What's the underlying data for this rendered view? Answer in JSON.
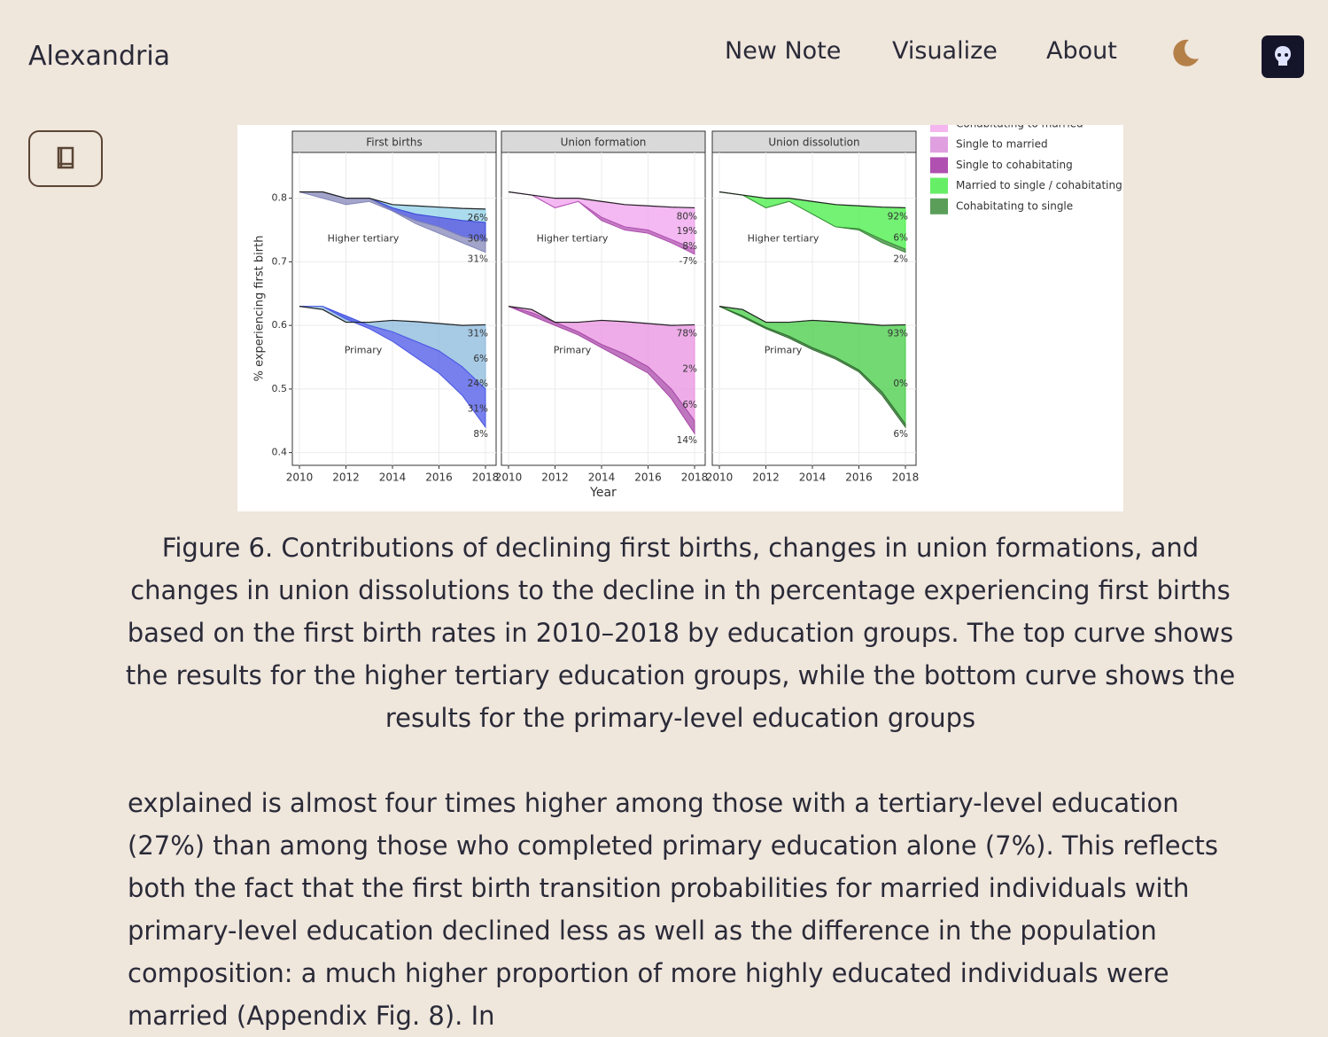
{
  "header": {
    "brand": "Alexandria",
    "nav": [
      "New Note",
      "Visualize",
      "About"
    ]
  },
  "chart_data": {
    "type": "facet-band",
    "ylabel": "% experiencing first birth",
    "xlabel": "Year",
    "x": [
      2010,
      2011,
      2012,
      2013,
      2014,
      2015,
      2016,
      2017,
      2018
    ],
    "xlim": [
      2010,
      2018
    ],
    "xticks": [
      2010,
      2012,
      2014,
      2016,
      2018
    ],
    "ylim": [
      0.38,
      0.872
    ],
    "yticks": [
      0.4,
      0.5,
      0.6,
      0.7,
      0.8
    ],
    "grid": true,
    "panels": [
      {
        "title": "First births",
        "groups": [
          {
            "label": "Higher tertiary",
            "baseline": [
              0.81,
              0.81,
              0.8,
              0.8,
              0.79,
              0.788,
              0.786,
              0.784,
              0.783
            ],
            "bands": [
              {
                "color": "#8fd0e8",
                "values": [
                  0.81,
                  0.81,
                  0.8,
                  0.8,
                  0.785,
                  0.775,
                  0.77,
                  0.765,
                  0.762
                ]
              },
              {
                "color": "#3a45d8",
                "values": [
                  0.81,
                  0.81,
                  0.8,
                  0.8,
                  0.78,
                  0.765,
                  0.755,
                  0.74,
                  0.732
                ]
              },
              {
                "color": "#8486b8",
                "values": [
                  0.81,
                  0.8,
                  0.79,
                  0.795,
                  0.78,
                  0.76,
                  0.745,
                  0.73,
                  0.715
                ]
              }
            ],
            "end_labels": [
              "26%",
              "30%",
              "31%"
            ]
          },
          {
            "label": "Primary",
            "baseline": [
              0.63,
              0.625,
              0.605,
              0.605,
              0.608,
              0.606,
              0.603,
              0.6,
              0.601
            ],
            "bands": [
              {
                "color": "#8ab8dc",
                "values": [
                  0.63,
                  0.63,
                  0.615,
                  0.6,
                  0.59,
                  0.575,
                  0.56,
                  0.535,
                  0.5
                ]
              },
              {
                "color": "#4a55e6",
                "values": [
                  0.63,
                  0.63,
                  0.61,
                  0.595,
                  0.575,
                  0.55,
                  0.525,
                  0.49,
                  0.44
                ]
              }
            ],
            "end_labels": [
              "31%",
              "6%",
              "24%",
              "31%",
              "8%"
            ]
          }
        ]
      },
      {
        "title": "Union formation",
        "groups": [
          {
            "label": "Higher tertiary",
            "baseline": [
              0.81,
              0.805,
              0.8,
              0.8,
              0.795,
              0.79,
              0.788,
              0.786,
              0.785
            ],
            "bands": [
              {
                "color": "#f0a0ee",
                "values": [
                  0.81,
                  0.805,
                  0.785,
                  0.795,
                  0.77,
                  0.755,
                  0.75,
                  0.735,
                  0.72
                ]
              },
              {
                "color": "#b050b0",
                "values": [
                  0.81,
                  0.805,
                  0.785,
                  0.795,
                  0.765,
                  0.75,
                  0.745,
                  0.73,
                  0.712
                ]
              }
            ],
            "end_labels": [
              "80%",
              "19%",
              "8%",
              "-7%"
            ]
          },
          {
            "label": "Primary",
            "baseline": [
              0.63,
              0.625,
              0.605,
              0.605,
              0.608,
              0.606,
              0.603,
              0.6,
              0.601
            ],
            "bands": [
              {
                "color": "#e890e0",
                "values": [
                  0.63,
                  0.62,
                  0.605,
                  0.59,
                  0.57,
                  0.555,
                  0.535,
                  0.5,
                  0.45
                ]
              },
              {
                "color": "#a848a8",
                "values": [
                  0.63,
                  0.615,
                  0.6,
                  0.585,
                  0.565,
                  0.545,
                  0.525,
                  0.485,
                  0.43
                ]
              }
            ],
            "end_labels": [
              "78%",
              "2%",
              "6%",
              "14%"
            ]
          }
        ]
      },
      {
        "title": "Union dissolution",
        "groups": [
          {
            "label": "Higher tertiary",
            "baseline": [
              0.81,
              0.805,
              0.8,
              0.8,
              0.795,
              0.79,
              0.788,
              0.786,
              0.785
            ],
            "bands": [
              {
                "color": "#44ee44",
                "values": [
                  0.81,
                  0.805,
                  0.785,
                  0.795,
                  0.775,
                  0.755,
                  0.752,
                  0.735,
                  0.72
                ]
              },
              {
                "color": "#3a8a3a",
                "values": [
                  0.81,
                  0.805,
                  0.785,
                  0.795,
                  0.775,
                  0.755,
                  0.75,
                  0.73,
                  0.715
                ]
              }
            ],
            "end_labels": [
              "92%",
              "6%",
              "2%"
            ]
          },
          {
            "label": "Primary",
            "baseline": [
              0.63,
              0.625,
              0.605,
              0.605,
              0.608,
              0.606,
              0.603,
              0.6,
              0.601
            ],
            "bands": [
              {
                "color": "#44cc44",
                "values": [
                  0.63,
                  0.615,
                  0.597,
                  0.583,
                  0.565,
                  0.55,
                  0.53,
                  0.495,
                  0.445
                ]
              },
              {
                "color": "#2f6e2f",
                "values": [
                  0.63,
                  0.613,
                  0.595,
                  0.58,
                  0.562,
                  0.547,
                  0.527,
                  0.49,
                  0.44
                ]
              }
            ],
            "end_labels": [
              "93%",
              "0%",
              "6%"
            ]
          }
        ]
      }
    ],
    "legend": [
      {
        "name": "Cohabitating to married",
        "color": "#f5b5ee"
      },
      {
        "name": "Single to married",
        "color": "#e0a0e0"
      },
      {
        "name": "Single to cohabitating",
        "color": "#b050b0"
      },
      {
        "name": "Married to single / cohabitating",
        "color": "#66ee66"
      },
      {
        "name": "Cohabitating to single",
        "color": "#5a9e5a"
      }
    ]
  },
  "caption": "Figure 6. Contributions of declining first births, changes in union formations, and changes in union dissolutions to the decline in th percentage experiencing first births based on the first birth rates in 2010–2018 by education groups. The top curve shows the results for the higher tertiary education groups, while the bottom curve shows the results for the primary-level education groups",
  "paragraph": "explained is almost four times higher among those with a tertiary-level education (27%) than among those who completed primary education alone (7%). This reflects both the fact that the first birth transition probabilities for married individuals with primary-level education declined less as well as the difference in the population composition: a much higher proportion of more highly educated individuals were married (Appendix Fig. 8). In"
}
